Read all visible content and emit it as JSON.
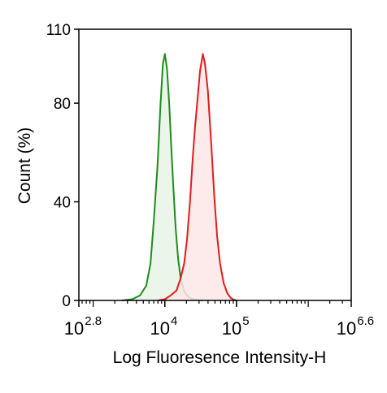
{
  "chart_data": {
    "type": "area",
    "xlabel": "Log Fluoresence Intensity-H",
    "ylabel": "Count  (%)",
    "x_scale": "log",
    "xlim": [
      631,
      3981072
    ],
    "ylim": [
      0,
      110
    ],
    "x_ticks": [
      {
        "value": 631,
        "base": "10",
        "exp": "2.8"
      },
      {
        "value": 10000,
        "base": "10",
        "exp": "4"
      },
      {
        "value": 100000,
        "base": "10",
        "exp": "5"
      },
      {
        "value": 3981072,
        "base": "10",
        "exp": "6.6"
      }
    ],
    "y_ticks": [
      {
        "value": 0,
        "label": "0"
      },
      {
        "value": 40,
        "label": "40"
      },
      {
        "value": 80,
        "label": "80"
      },
      {
        "value": 110,
        "label": "110"
      }
    ],
    "grid": false,
    "series": [
      {
        "color": "#1e8c1e",
        "fill": "#e8f3e6",
        "x": [
          2500,
          3500,
          4500,
          5500,
          6300,
          7000,
          7900,
          8700,
          9400,
          10000,
          10700,
          11500,
          12300,
          13200,
          14100,
          15300,
          16600,
          18500,
          20400,
          22400,
          24500,
          28200,
          33900
        ],
        "y": [
          0,
          0.5,
          2,
          6,
          15,
          32,
          55,
          80,
          96,
          100,
          94,
          80,
          62,
          45,
          30,
          17,
          9,
          4,
          2,
          1,
          0.5,
          0.2,
          0
        ]
      },
      {
        "color": "#e01c1c",
        "fill": "#fde6e8",
        "x": [
          8000,
          10000,
          12000,
          14500,
          16600,
          18600,
          20400,
          22400,
          24500,
          26300,
          28200,
          30900,
          33900,
          36300,
          39800,
          44700,
          49000,
          53700,
          58900,
          66100,
          74100,
          83200,
          91200,
          100000
        ],
        "y": [
          0,
          0.5,
          2,
          4,
          9,
          15,
          25,
          40,
          58,
          70,
          80,
          93,
          100,
          96,
          85,
          62,
          42,
          26,
          15,
          7,
          3,
          1,
          0.3,
          0
        ]
      }
    ]
  }
}
